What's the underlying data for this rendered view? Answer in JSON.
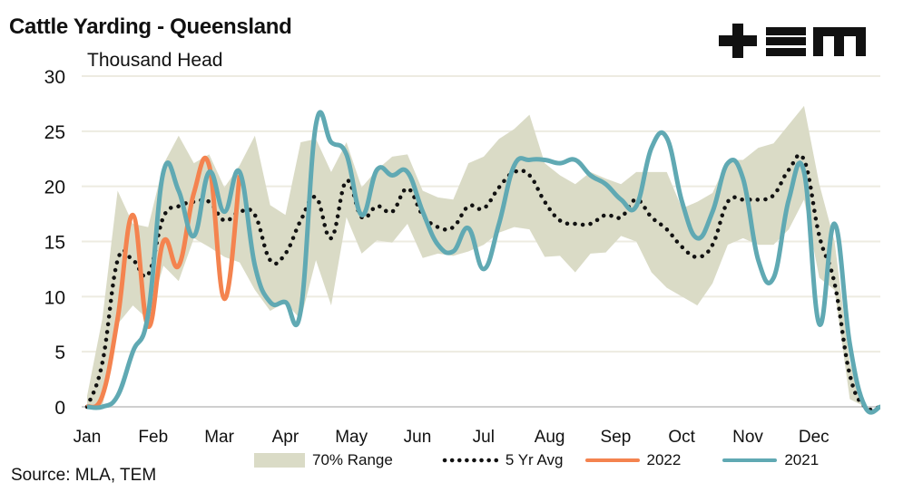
{
  "title": "Cattle Yarding - Queensland",
  "unit_label": "Thousand Head",
  "source": "Source: MLA, TEM",
  "logo_text": "+TEM",
  "colors": {
    "range": "#DADBC6",
    "avg": "#111111",
    "y2022": "#F4834F",
    "y2021": "#60A9B3",
    "grid": "#EDEBE1"
  },
  "chart_data": {
    "type": "line",
    "title": "Cattle Yarding - Queensland",
    "ylabel": "Thousand Head",
    "xlabel": "",
    "ylim": [
      0,
      30
    ],
    "yticks": [
      "0",
      "5",
      "10",
      "15",
      "20",
      "25",
      "30"
    ],
    "month_labels": [
      "Jan",
      "Feb",
      "Mar",
      "Apr",
      "May",
      "Jun",
      "Jul",
      "Aug",
      "Sep",
      "Oct",
      "Nov",
      "Dec"
    ],
    "x_unit": "week",
    "legend": [
      "70% Range",
      "5 Yr Avg",
      "2022",
      "2021"
    ],
    "legend_position": "bottom",
    "grid": true,
    "range_high": [
      1,
      8,
      19.6,
      16.6,
      16.3,
      22,
      24.6,
      22.1,
      22.9,
      19.9,
      21.9,
      24.6,
      18.3,
      17.4,
      24,
      24.3,
      21.3,
      24,
      19.9,
      21.5,
      22.7,
      22.9,
      19.6,
      19,
      18.8,
      22.1,
      22.7,
      24.3,
      25.2,
      26.5,
      22.1,
      21,
      20.2,
      21.3,
      20.7,
      20.2,
      21.3,
      21.3,
      21.3,
      18,
      18.6,
      19.4,
      22.4,
      22.4,
      23.5,
      23.9,
      25.6,
      27.3,
      20.2,
      15,
      4,
      0,
      0
    ],
    "range_low": [
      0,
      0,
      7.5,
      9.2,
      7.9,
      12.8,
      11.4,
      15.3,
      14.5,
      13.6,
      13.1,
      10.6,
      8.7,
      9.5,
      7.9,
      13.3,
      9.2,
      17.2,
      13.9,
      15.1,
      14.9,
      16.6,
      13.5,
      13.9,
      13.7,
      14.1,
      14.7,
      15.8,
      16.3,
      16.1,
      13.6,
      13.7,
      12.2,
      13.9,
      14,
      15.5,
      15,
      12.2,
      10.8,
      10,
      9.2,
      11.2,
      14.7,
      15.3,
      14.7,
      14.7,
      16.1,
      18.8,
      11.7,
      10.6,
      0.7,
      0,
      0
    ],
    "avg_5yr": [
      0,
      4,
      13.3,
      13.3,
      12,
      17.2,
      18.2,
      18.6,
      18.6,
      16.9,
      17.7,
      17.4,
      13.3,
      13.9,
      16.9,
      19,
      15.3,
      20.5,
      17.2,
      18.2,
      17.7,
      19.8,
      17.4,
      16.3,
      16.3,
      18.2,
      18,
      19.9,
      21.3,
      21,
      18.6,
      16.9,
      16.6,
      16.6,
      17.4,
      17.2,
      18.8,
      17.2,
      16.1,
      14.5,
      13.6,
      14.7,
      18.6,
      18.8,
      18.8,
      19.2,
      21.5,
      22.4,
      15.5,
      11.2,
      2.9,
      0,
      0
    ],
    "series_2022": [
      0,
      1,
      8,
      17.4,
      7.3,
      15,
      12.8,
      19.4,
      21.9,
      9.8,
      21
    ],
    "series_2021": [
      0,
      0,
      1,
      5,
      8.4,
      21.3,
      19.6,
      15.5,
      21.3,
      17.7,
      21.3,
      12.8,
      9.5,
      9.5,
      8.7,
      25.6,
      24,
      22.9,
      17.4,
      21.5,
      21,
      21.3,
      17.7,
      14.7,
      14.1,
      16.2,
      12.5,
      16.6,
      21.9,
      22.4,
      22.4,
      22.1,
      22.4,
      21,
      20.2,
      18.8,
      18.2,
      23.5,
      24.4,
      18.6,
      15.3,
      17.7,
      22.1,
      20.7,
      13.3,
      11.7,
      18.8,
      21.3,
      7.5,
      16.6,
      5.7,
      0,
      0
    ]
  }
}
